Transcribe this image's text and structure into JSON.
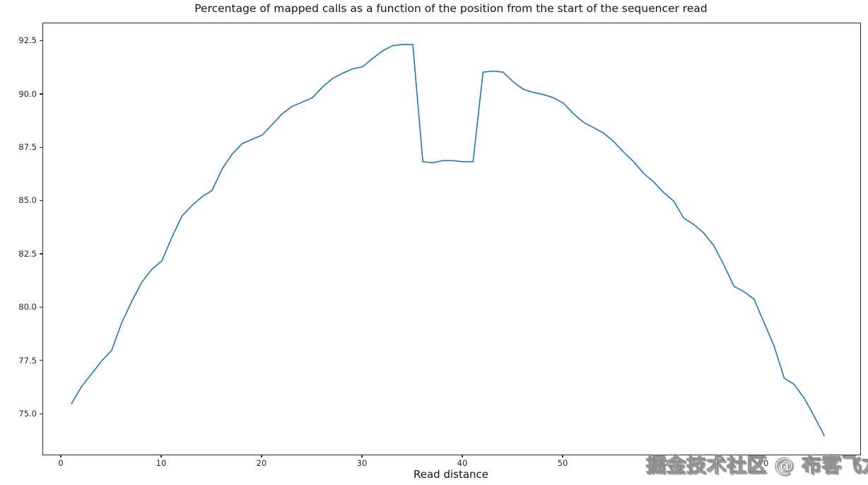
{
  "figure": {
    "title": "Percentage of mapped calls as a function of the position from the start of the sequencer read",
    "xlabel": "Read distance",
    "watermark": "掘金技术社区 @ 布客飞龙"
  },
  "chart_data": {
    "type": "line",
    "title": "Percentage of mapped calls as a function of the position from the start of the sequencer read",
    "xlabel": "Read distance",
    "ylabel": "",
    "legend": "none",
    "grid": false,
    "line_color": "#1f77b4",
    "line_width": 1.6,
    "xlim": [
      -1.83,
      79.58
    ],
    "ylim": [
      73.11,
      93.34
    ],
    "x_ticks": [
      0,
      10,
      20,
      30,
      40,
      50,
      60,
      70
    ],
    "y_ticks": [
      75.0,
      77.5,
      80.0,
      82.5,
      85.0,
      87.5,
      90.0,
      92.5
    ],
    "x": [
      1,
      2,
      3,
      4,
      5,
      6,
      7,
      8,
      9,
      10,
      11,
      12,
      13,
      14,
      15,
      16,
      17,
      18,
      19,
      20,
      21,
      22,
      23,
      24,
      25,
      26,
      27,
      28,
      29,
      30,
      31,
      32,
      33,
      34,
      35,
      36,
      37,
      38,
      39,
      40,
      41,
      42,
      43,
      44,
      45,
      46,
      47,
      48,
      49,
      50,
      51,
      52,
      53,
      54,
      55,
      56,
      57,
      58,
      59,
      60,
      61,
      62,
      63,
      64,
      65,
      66,
      67,
      68,
      69,
      70,
      71,
      72,
      73,
      74,
      75,
      76
    ],
    "y": [
      75.5,
      76.3,
      76.9,
      77.5,
      78.0,
      79.3,
      80.3,
      81.2,
      81.8,
      82.2,
      83.3,
      84.3,
      84.8,
      85.2,
      85.5,
      86.5,
      87.2,
      87.7,
      87.9,
      88.1,
      88.6,
      89.1,
      89.45,
      89.65,
      89.85,
      90.35,
      90.75,
      91.0,
      91.2,
      91.3,
      91.7,
      92.05,
      92.3,
      92.35,
      92.35,
      86.85,
      86.8,
      86.9,
      86.9,
      86.85,
      86.85,
      91.05,
      91.1,
      91.05,
      90.6,
      90.25,
      90.1,
      90.0,
      89.85,
      89.6,
      89.1,
      88.7,
      88.45,
      88.2,
      87.8,
      87.3,
      86.85,
      86.3,
      85.9,
      85.4,
      85.0,
      84.2,
      83.9,
      83.5,
      82.9,
      82.0,
      81.0,
      80.75,
      80.4,
      79.3,
      78.2,
      76.7,
      76.4,
      75.75,
      74.9,
      74.0
    ]
  }
}
